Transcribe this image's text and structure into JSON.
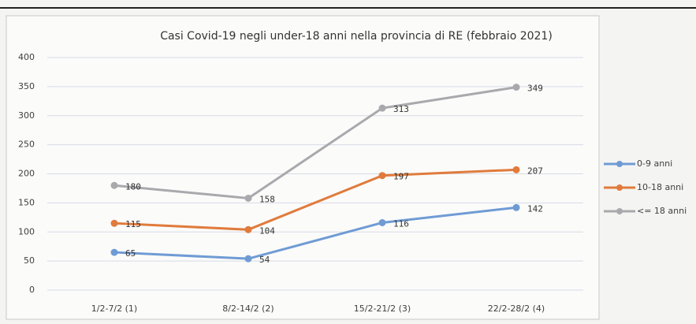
{
  "chart_data": {
    "type": "line",
    "title": "Casi Covid-19 negli under-18 anni nella provincia di RE (febbraio 2021)",
    "categories": [
      "1/2-7/2 (1)",
      "8/2-14/2 (2)",
      "15/2-21/2 (3)",
      "22/2-28/2 (4)"
    ],
    "series": [
      {
        "name": "0-9 anni",
        "color": "#6f9bd4",
        "values": [
          65,
          54,
          116,
          142
        ]
      },
      {
        "name": "10-18 anni",
        "color": "#e07b3c",
        "values": [
          115,
          104,
          197,
          207
        ]
      },
      {
        "name": "<= 18 anni",
        "color": "#a9a9ad",
        "values": [
          180,
          158,
          313,
          349
        ]
      }
    ],
    "ylim": [
      0,
      400
    ],
    "yticks": [
      0,
      50,
      100,
      150,
      200,
      250,
      300,
      350,
      400
    ],
    "grid": true,
    "legend": "right"
  }
}
